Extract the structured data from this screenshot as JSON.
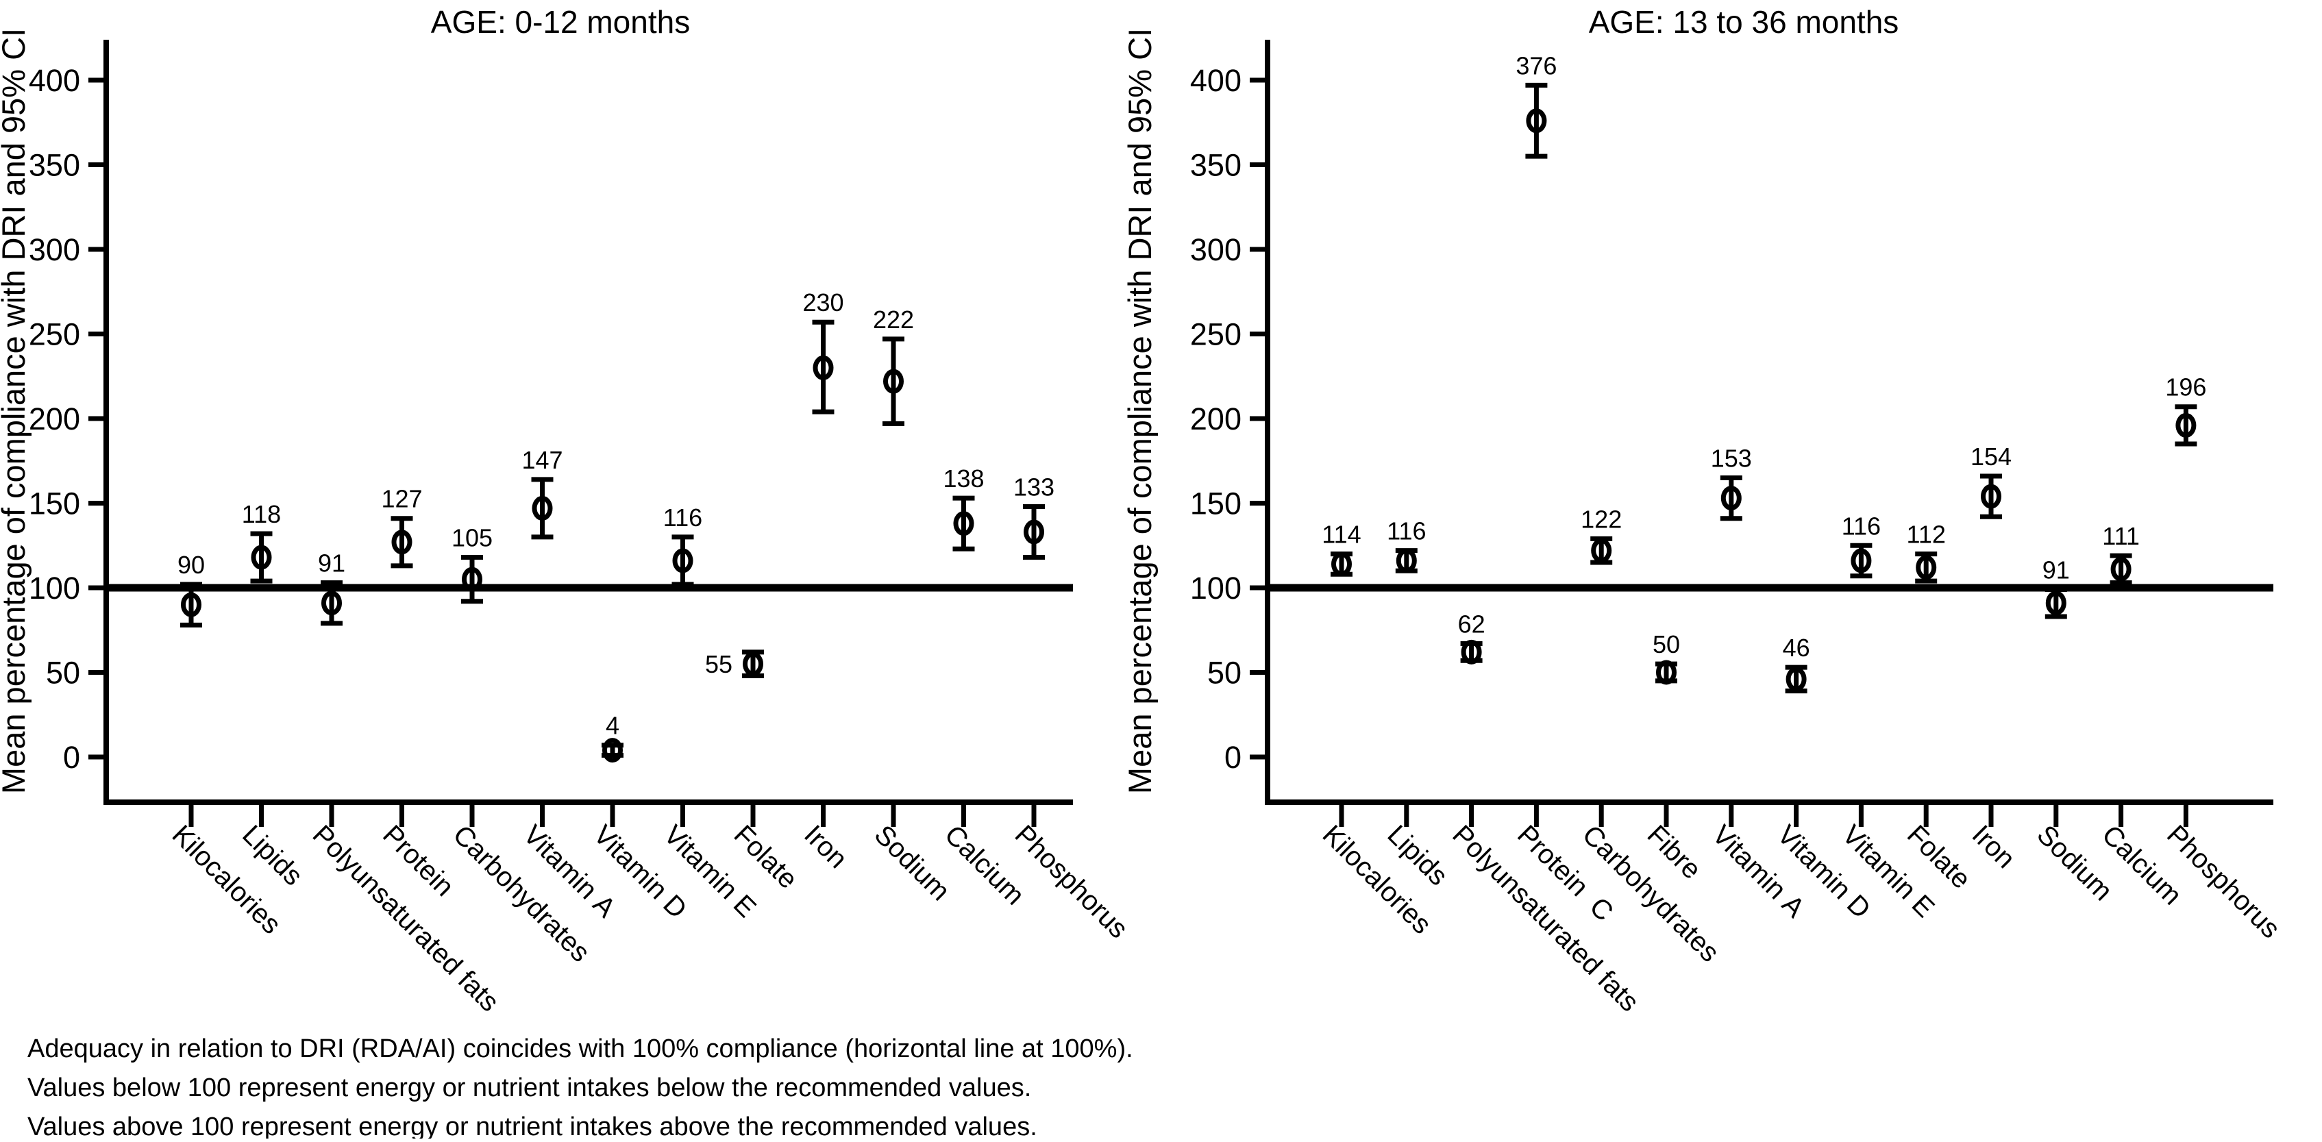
{
  "figure": {
    "y_axis_label": "Mean percentage of compliance with DRI and 95% CI",
    "caption": {
      "line1": "Adequacy in relation to DRI (RDA/AI) coincides with 100% compliance (horizontal line at 100%).",
      "line2": "Values below 100 represent energy or nutrient intakes below the recommended values.",
      "line3": "Values above 100 represent energy or nutrient intakes above the recommended values."
    },
    "colors": {
      "ink": "#000000",
      "background": "#ffffff"
    }
  },
  "chart_data": [
    {
      "type": "scatter",
      "error_bars": "95% CI",
      "title": "AGE: 0-12 months",
      "ylabel": "Mean percentage of compliance with DRI and 95% CI",
      "xlabel": "",
      "ylim": [
        0,
        430
      ],
      "yticks": [
        0,
        50,
        100,
        150,
        200,
        250,
        300,
        350,
        400
      ],
      "reference_line_y": 100,
      "grid": false,
      "legend": "none",
      "categories": [
        "Kilocalories",
        "Lipids",
        "Polyunsaturated fats",
        "Protein",
        "Carbohydrates",
        "Vitamin A",
        "Vitamin D",
        "Vitamin E",
        "Folate",
        "Iron",
        "Sodium",
        "Calcium",
        "Phosphorus"
      ],
      "series": [
        {
          "name": "Mean percentage of compliance",
          "values": [
            90,
            118,
            91,
            127,
            105,
            147,
            4,
            116,
            55,
            230,
            222,
            138,
            133
          ],
          "ci_low": [
            78,
            104,
            79,
            113,
            92,
            130,
            1,
            102,
            48,
            204,
            197,
            123,
            118
          ],
          "ci_high": [
            102,
            132,
            103,
            141,
            118,
            164,
            7,
            130,
            62,
            257,
            247,
            153,
            148
          ]
        }
      ]
    },
    {
      "type": "scatter",
      "error_bars": "95% CI",
      "title": "AGE: 13 to 36 months",
      "ylabel": "Mean percentage of compliance with DRI and 95% CI",
      "xlabel": "",
      "ylim": [
        0,
        430
      ],
      "yticks": [
        0,
        50,
        100,
        150,
        200,
        250,
        300,
        350,
        400
      ],
      "reference_line_y": 100,
      "grid": false,
      "legend": "none",
      "categories": [
        "Kilocalories",
        "Lipids",
        "Polyunsaturated fats",
        "Protein  C",
        "Carbohydrates",
        "Fibre",
        "Vitamin A",
        "Vitamin D",
        "Vitamin E",
        "Folate",
        "Iron",
        "Sodium",
        "Calcium",
        "Phosphorus"
      ],
      "series": [
        {
          "name": "Mean percentage of compliance",
          "values": [
            114,
            116,
            62,
            376,
            122,
            50,
            153,
            46,
            116,
            112,
            154,
            91,
            111,
            196
          ],
          "ci_low": [
            108,
            110,
            57,
            355,
            115,
            45,
            141,
            39,
            107,
            104,
            142,
            83,
            103,
            185
          ],
          "ci_high": [
            120,
            122,
            67,
            397,
            129,
            55,
            165,
            53,
            125,
            120,
            166,
            99,
            119,
            207
          ]
        }
      ]
    }
  ]
}
